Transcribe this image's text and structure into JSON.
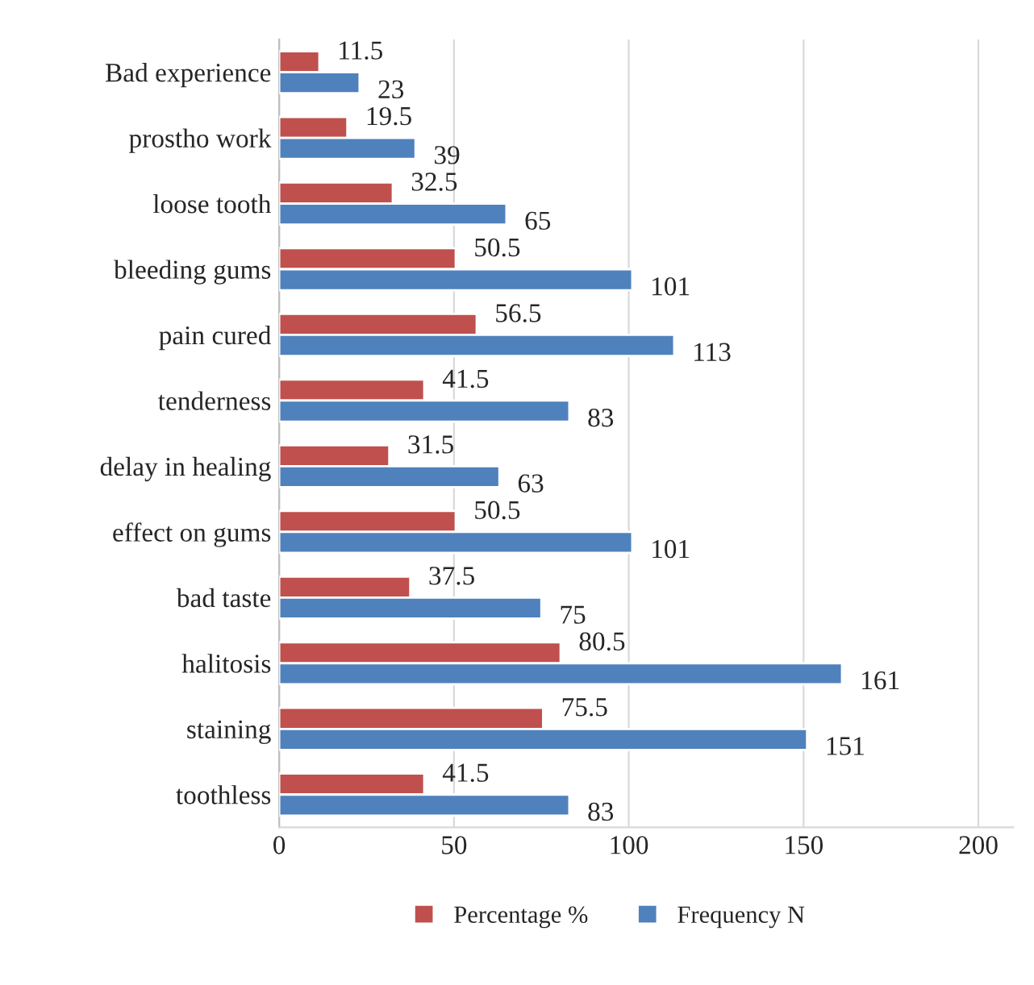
{
  "chart_data": {
    "type": "bar",
    "orientation": "horizontal",
    "categories": [
      "Bad experience",
      "prostho work",
      "loose tooth",
      "bleeding gums",
      "pain cured",
      "tenderness",
      "delay in healing",
      "effect on gums",
      "bad taste",
      "halitosis",
      "staining",
      "toothless"
    ],
    "series": [
      {
        "name": "Percentage %",
        "color": "#c0504d",
        "values": [
          11.5,
          19.5,
          32.5,
          50.5,
          56.5,
          41.5,
          31.5,
          50.5,
          37.5,
          80.5,
          75.5,
          41.5
        ]
      },
      {
        "name": "Frequency N",
        "color": "#4f81bd",
        "values": [
          23,
          39,
          65,
          101,
          113,
          83,
          63,
          101,
          75,
          161,
          151,
          83
        ]
      }
    ],
    "xlim": [
      0,
      210
    ],
    "xticks": [
      0,
      50,
      100,
      150,
      200
    ],
    "grid": "x",
    "legend": "bottom",
    "data_labels": true
  }
}
